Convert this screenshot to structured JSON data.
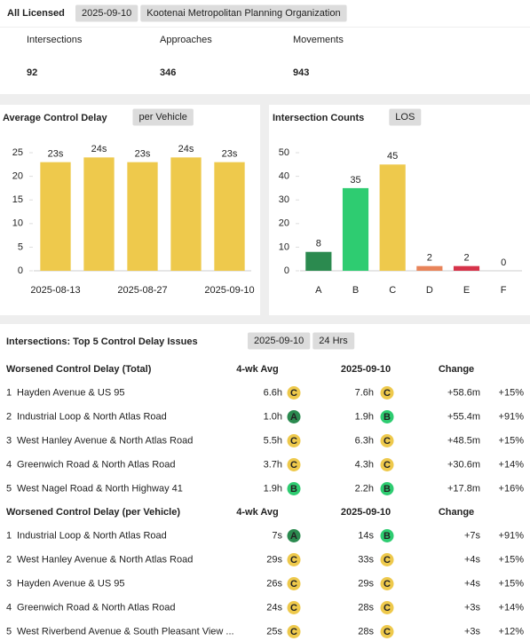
{
  "header": {
    "title": "All Licensed",
    "date": "2025-09-10",
    "agency": "Kootenai Metropolitan Planning Organization"
  },
  "kpis": [
    {
      "label": "Intersections",
      "value": 92
    },
    {
      "label": "Approaches",
      "value": 346
    },
    {
      "label": "Movements",
      "value": 943
    }
  ],
  "chart_data": [
    {
      "type": "bar",
      "title": "Average Control Delay",
      "tag": "per Vehicle",
      "categories": [
        "2025-08-13",
        null,
        "2025-08-27",
        null,
        "2025-09-10"
      ],
      "values": [
        23,
        24,
        23,
        24,
        23
      ],
      "value_labels": [
        "23s",
        "24s",
        "23s",
        "24s",
        "23s"
      ],
      "color": "#eec94c",
      "ylim": [
        0,
        25
      ],
      "yticks": [
        0,
        5,
        10,
        15,
        20,
        25
      ]
    },
    {
      "type": "bar",
      "title": "Intersection Counts",
      "tag": "LOS",
      "categories": [
        "A",
        "B",
        "C",
        "D",
        "E",
        "F"
      ],
      "values": [
        8,
        35,
        45,
        2,
        2,
        0
      ],
      "colors": [
        "#2b8a4f",
        "#2ecc71",
        "#eec94c",
        "#e8845a",
        "#d6334a",
        "#999999"
      ],
      "ylim": [
        0,
        50
      ],
      "yticks": [
        0,
        10,
        20,
        30,
        40,
        50
      ]
    }
  ],
  "table": {
    "title": "Intersections: Top 5 Control Delay Issues",
    "date": "2025-09-10",
    "period": "24 Hrs",
    "groups": [
      {
        "title": "Worsened Control Delay (Total)",
        "columns": [
          "4-wk Avg",
          "2025-09-10",
          "Change"
        ],
        "rows": [
          {
            "rank": 1,
            "name": "Hayden Avenue & US 95",
            "avg": "6.6h",
            "avg_grade": "C",
            "current": "7.6h",
            "current_grade": "C",
            "change": "+58.6m",
            "change_pct": "+15%"
          },
          {
            "rank": 2,
            "name": "Industrial Loop & North Atlas Road",
            "avg": "1.0h",
            "avg_grade": "A",
            "current": "1.9h",
            "current_grade": "B",
            "change": "+55.4m",
            "change_pct": "+91%"
          },
          {
            "rank": 3,
            "name": "West Hanley Avenue & North Atlas Road",
            "avg": "5.5h",
            "avg_grade": "C",
            "current": "6.3h",
            "current_grade": "C",
            "change": "+48.5m",
            "change_pct": "+15%"
          },
          {
            "rank": 4,
            "name": "Greenwich Road & North Atlas Road",
            "avg": "3.7h",
            "avg_grade": "C",
            "current": "4.3h",
            "current_grade": "C",
            "change": "+30.6m",
            "change_pct": "+14%"
          },
          {
            "rank": 5,
            "name": "West Nagel Road & North Highway 41",
            "avg": "1.9h",
            "avg_grade": "B",
            "current": "2.2h",
            "current_grade": "B",
            "change": "+17.8m",
            "change_pct": "+16%"
          }
        ]
      },
      {
        "title": "Worsened Control Delay (per Vehicle)",
        "columns": [
          "4-wk Avg",
          "2025-09-10",
          "Change"
        ],
        "rows": [
          {
            "rank": 1,
            "name": "Industrial Loop & North Atlas Road",
            "avg": "7s",
            "avg_grade": "A",
            "current": "14s",
            "current_grade": "B",
            "change": "+7s",
            "change_pct": "+91%"
          },
          {
            "rank": 2,
            "name": "West Hanley Avenue & North Atlas Road",
            "avg": "29s",
            "avg_grade": "C",
            "current": "33s",
            "current_grade": "C",
            "change": "+4s",
            "change_pct": "+15%"
          },
          {
            "rank": 3,
            "name": "Hayden Avenue & US 95",
            "avg": "26s",
            "avg_grade": "C",
            "current": "29s",
            "current_grade": "C",
            "change": "+4s",
            "change_pct": "+15%"
          },
          {
            "rank": 4,
            "name": "Greenwich Road & North Atlas Road",
            "avg": "24s",
            "avg_grade": "C",
            "current": "28s",
            "current_grade": "C",
            "change": "+3s",
            "change_pct": "+14%"
          },
          {
            "rank": 5,
            "name": "West Riverbend Avenue & South Pleasant View ...",
            "avg": "25s",
            "avg_grade": "C",
            "current": "28s",
            "current_grade": "C",
            "change": "+3s",
            "change_pct": "+12%"
          }
        ]
      }
    ]
  }
}
